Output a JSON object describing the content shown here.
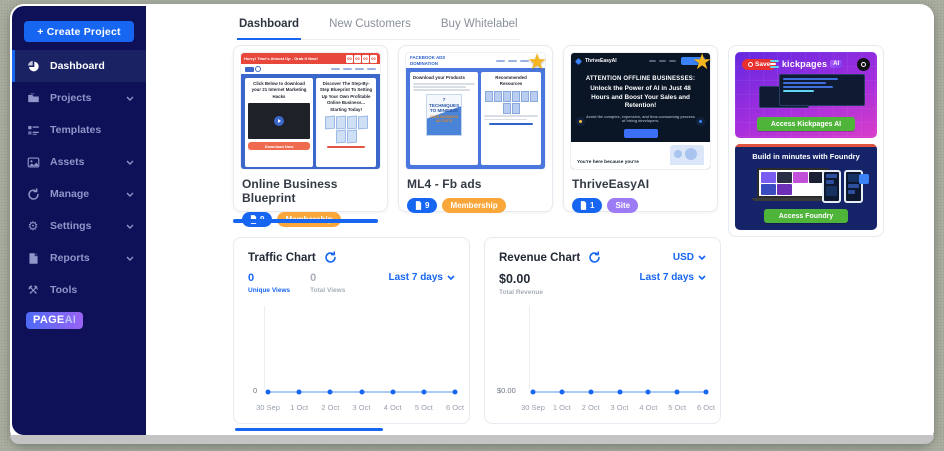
{
  "sidebar": {
    "create_project_label": "+ Create Project",
    "items": [
      {
        "label": "Dashboard",
        "active": true,
        "has_submenu": false
      },
      {
        "label": "Projects",
        "active": false,
        "has_submenu": true
      },
      {
        "label": "Templates",
        "active": false,
        "has_submenu": false
      },
      {
        "label": "Assets",
        "active": false,
        "has_submenu": true
      },
      {
        "label": "Manage",
        "active": false,
        "has_submenu": true
      },
      {
        "label": "Settings",
        "active": false,
        "has_submenu": true
      },
      {
        "label": "Reports",
        "active": false,
        "has_submenu": true
      },
      {
        "label": "Tools",
        "active": false,
        "has_submenu": false
      }
    ],
    "logo": {
      "primary": "PAGE",
      "secondary": "AI"
    }
  },
  "tabs": [
    {
      "label": "Dashboard",
      "active": true
    },
    {
      "label": "New Customers",
      "active": false
    },
    {
      "label": "Buy Whitelabel",
      "active": false
    }
  ],
  "projects": [
    {
      "title": "Online Business Blueprint",
      "pages_count": "9",
      "type_label": "Membership",
      "starred": false,
      "thumb": {
        "topbar_text": "Hurry! Time's Almost Up - Grab It Now!",
        "timer": [
          "00",
          "00",
          "00",
          "00"
        ],
        "left_heading": "Click Below to download your 21 Internet Marketing Hacks",
        "cta": "Download Now",
        "right_heading": "Discover The Step-By-Step Blueprint To Setting Up Your Own Profitable Online Business... Starting Today!"
      }
    },
    {
      "title": "ML4 - Fb ads",
      "pages_count": "9",
      "type_label": "Membership",
      "starred": true,
      "thumb": {
        "brand_line1": "FACEBOOK ADS",
        "brand_line2": "DOMINATION",
        "left_heading": "Download your Products",
        "book_title": "7 TECHNIQUES TO MINIMIZE",
        "book_subtitle": "YOUR FACEBOOK AD COSTS",
        "right_heading": "Recommended Resources"
      }
    },
    {
      "title": "ThriveEasyAI",
      "pages_count": "1",
      "type_label": "Site",
      "starred": true,
      "thumb": {
        "brand": "ThriveEasyAI",
        "headline1": "ATTENTION OFFLINE BUSINESSES:",
        "headline2": "Unlock the Power of AI in Just 48 Hours and Boost Your Sales and Retention!",
        "subline": "Avoid the complex, expensive, and time-consuming process of hiring developers.",
        "bottom_text": "You're here because you're"
      }
    }
  ],
  "banners": [
    {
      "save_label": "Save",
      "brand": "kickpages",
      "brand_badge": "AI",
      "cta": "Access Kickpages AI"
    },
    {
      "headline": "Build in minutes with Foundry",
      "cta": "Access Foundry"
    }
  ],
  "chart_data": [
    {
      "type": "line",
      "title": "Traffic Chart",
      "x": [
        "30 Sep",
        "1 Oct",
        "2 Oct",
        "3 Oct",
        "4 Oct",
        "5 Oct",
        "6 Oct"
      ],
      "series": [
        {
          "name": "Unique Views",
          "values": [
            0,
            0,
            0,
            0,
            0,
            0,
            0
          ]
        },
        {
          "name": "Total Views",
          "values": [
            0,
            0,
            0,
            0,
            0,
            0,
            0
          ]
        }
      ],
      "stats": [
        {
          "value": "0",
          "label": "Unique Views"
        },
        {
          "value": "0",
          "label": "Total Views"
        }
      ],
      "range_selector": "Last 7 days",
      "y_axis_zero_label": "0",
      "ylim": [
        0,
        1
      ],
      "grid": false,
      "legend_position": "top-left"
    },
    {
      "type": "line",
      "title": "Revenue Chart",
      "currency_selector": "USD",
      "total_value": "$0.00",
      "total_label": "Total Revenue",
      "x": [
        "30 Sep",
        "1 Oct",
        "2 Oct",
        "3 Oct",
        "4 Oct",
        "5 Oct",
        "6 Oct"
      ],
      "series": [
        {
          "name": "Total Revenue",
          "values": [
            0,
            0,
            0,
            0,
            0,
            0,
            0
          ]
        }
      ],
      "range_selector": "Last 7 days",
      "y_axis_zero_label": "$0.00",
      "ylim": [
        0,
        1
      ],
      "grid": false
    }
  ],
  "colors": {
    "accent_blue": "#1766F2",
    "sidebar_navy": "#0E1157",
    "badge_orange": "#F9A63A",
    "badge_purple": "#9D7BF4",
    "star_gold": "#F5B51E",
    "cta_green": "#4FB53A"
  }
}
